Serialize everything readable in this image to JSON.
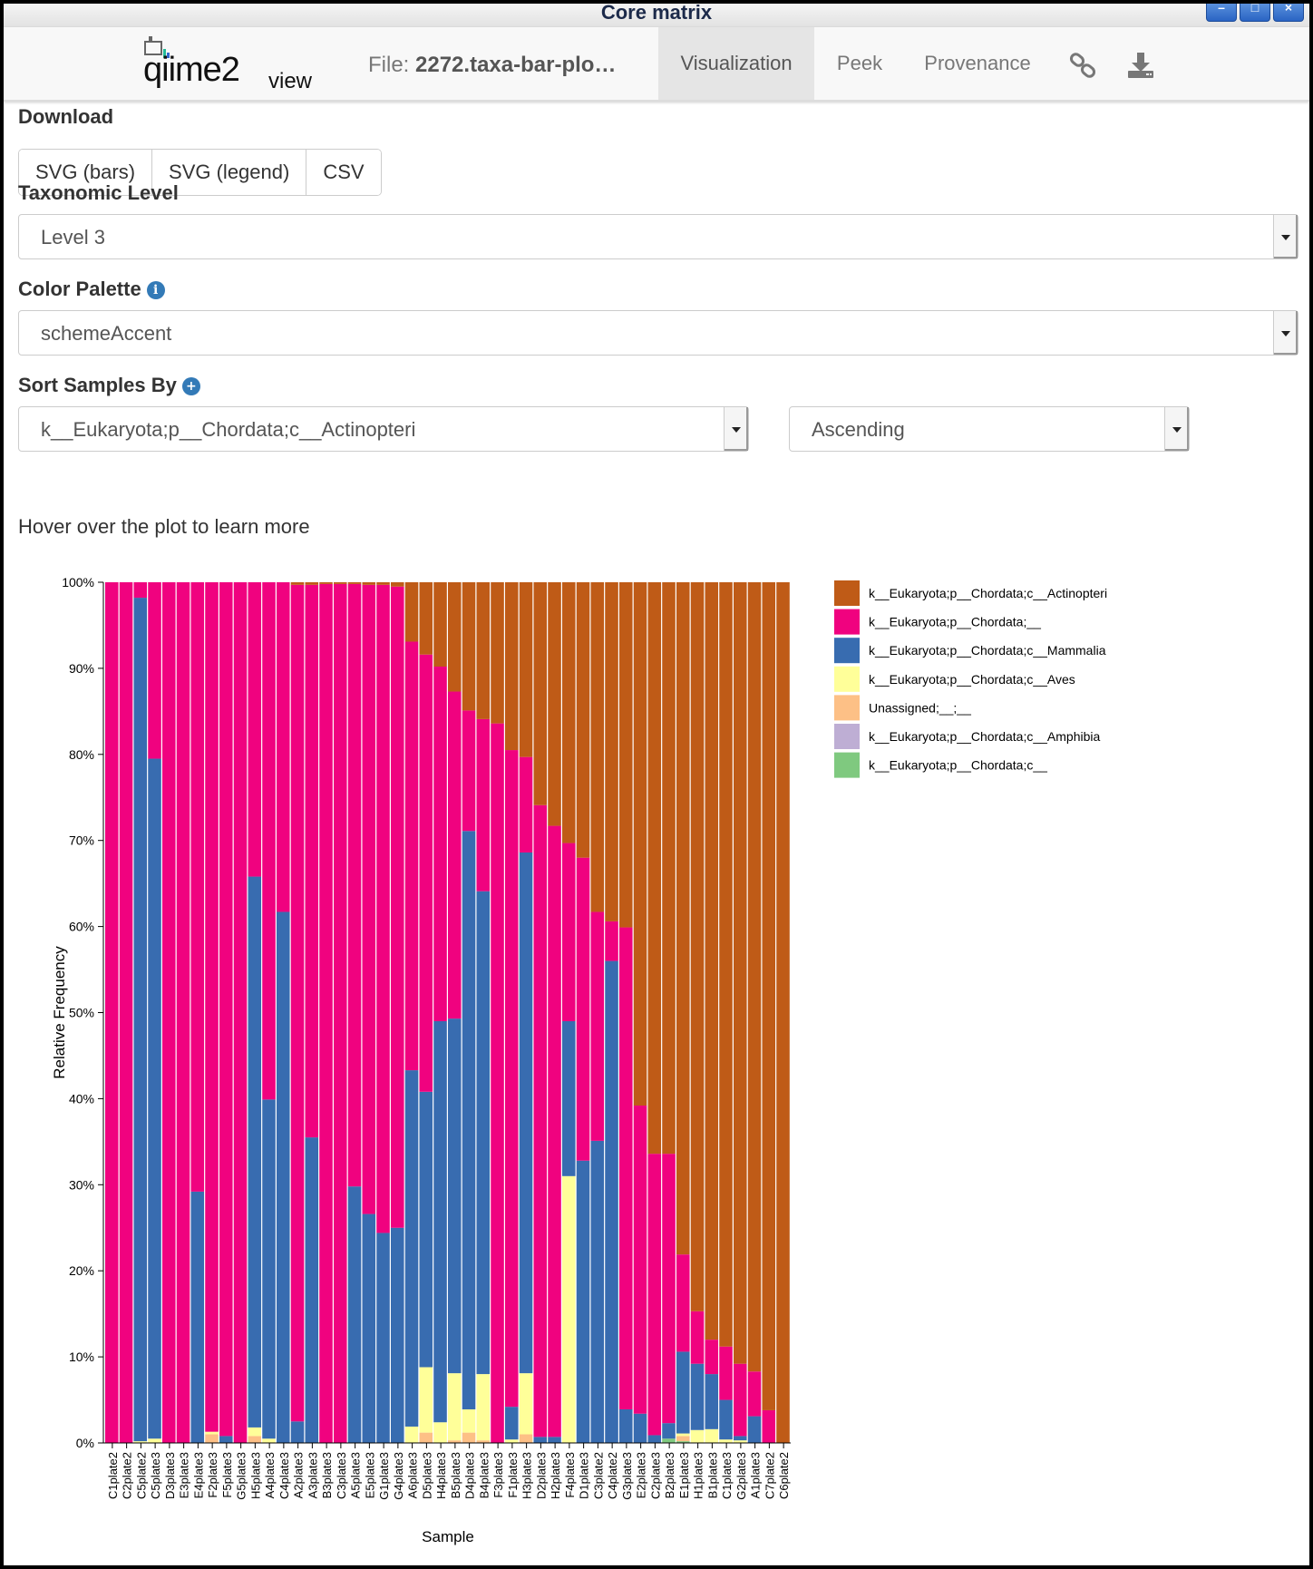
{
  "window": {
    "title": "Core matrix",
    "controls": [
      "–",
      "□",
      "×"
    ]
  },
  "navbar": {
    "logo_text": "qiime2",
    "logo_view": "view",
    "file_prefix": "File: ",
    "file_name": "2272.taxa-bar-plo…",
    "tabs": [
      {
        "label": "Visualization",
        "active": true
      },
      {
        "label": "Peek",
        "active": false
      },
      {
        "label": "Provenance",
        "active": false
      }
    ],
    "icons": [
      "link-icon",
      "download-icon"
    ]
  },
  "controls": {
    "download_label": "Download",
    "download_buttons": [
      "SVG (bars)",
      "SVG (legend)",
      "CSV"
    ],
    "taxonomic_level_label": "Taxonomic Level",
    "taxonomic_level_value": "Level 3",
    "color_palette_label": "Color Palette",
    "color_palette_value": "schemeAccent",
    "sort_label": "Sort Samples By",
    "sort_value": "k__Eukaryota;p__Chordata;c__Actinopteri",
    "sort_order": "Ascending",
    "hover_text": "Hover over the plot to learn more"
  },
  "chart_data": {
    "type": "bar",
    "stacked": true,
    "xlabel": "Sample",
    "ylabel": "Relative Frequency",
    "ylim": [
      0,
      100
    ],
    "yticks": [
      "0%",
      "10%",
      "20%",
      "30%",
      "40%",
      "50%",
      "60%",
      "70%",
      "80%",
      "90%",
      "100%"
    ],
    "categories": [
      "C1plate2",
      "C2plate2",
      "C5plate2",
      "C5plate3",
      "D3plate3",
      "E3plate3",
      "E4plate3",
      "F2plate3",
      "F5plate3",
      "G5plate3",
      "H5plate3",
      "A4plate3",
      "C4plate3",
      "A2plate3",
      "A3plate3",
      "B3plate3",
      "C3plate3",
      "A5plate3",
      "E5plate3",
      "G1plate3",
      "G4plate3",
      "A6plate3",
      "D5plate3",
      "H4plate3",
      "B5plate3",
      "D4plate3",
      "B4plate3",
      "F3plate3",
      "F1plate3",
      "H3plate3",
      "D2plate3",
      "H2plate3",
      "F4plate3",
      "D1plate3",
      "C3plate2",
      "C4plate2",
      "G3plate3",
      "E2plate3",
      "C2plate3",
      "B2plate3",
      "E1plate3",
      "H1plate3",
      "B1plate3",
      "C1plate3",
      "G2plate3",
      "A1plate3",
      "C7plate2",
      "C6plate2"
    ],
    "series": [
      {
        "name": "k__Eukaryota;p__Chordata;c__Amphibia",
        "color": "#beaed4",
        "values": [
          0,
          0,
          0,
          0,
          0,
          0,
          0,
          0,
          0,
          0,
          0,
          0,
          0,
          0,
          0,
          0,
          0,
          0,
          0,
          0,
          0,
          0,
          0,
          0,
          0,
          0,
          0,
          0,
          0,
          0,
          0,
          0,
          0,
          0,
          0,
          0,
          0,
          0,
          0,
          0,
          0,
          0,
          0,
          0,
          0,
          0,
          0,
          0
        ]
      },
      {
        "name": "k__Eukaryota;p__Chordata;c__",
        "color": "#7fc97f",
        "values": [
          0,
          0,
          0,
          0,
          0,
          0,
          0,
          0,
          0,
          0,
          0,
          0,
          0,
          0,
          0,
          0,
          0,
          0,
          0,
          0,
          0,
          0,
          0,
          0,
          0,
          0,
          0,
          0,
          0,
          0,
          0,
          0,
          0,
          0,
          0,
          0,
          0,
          0,
          0,
          0.5,
          0.2,
          0,
          0,
          0,
          0,
          0,
          0,
          0
        ]
      },
      {
        "name": "Unassigned;__;__",
        "color": "#fdc086",
        "values": [
          0,
          0,
          0,
          0,
          0,
          0,
          0,
          1.0,
          0,
          0,
          0.8,
          0,
          0,
          0,
          0,
          0,
          0,
          0,
          0,
          0,
          0,
          0,
          1.2,
          0,
          0.3,
          1.2,
          0.3,
          0,
          0,
          1.0,
          0,
          0,
          0,
          0,
          0,
          0,
          0,
          0,
          0,
          0,
          0.6,
          0,
          0,
          0,
          0,
          0,
          0,
          0
        ]
      },
      {
        "name": "k__Eukaryota;p__Chordata;c__Aves",
        "color": "#ffff99",
        "values": [
          0,
          0,
          0.2,
          0.5,
          0,
          0,
          0,
          0.3,
          0,
          0,
          1.0,
          0.5,
          0,
          0,
          0,
          0,
          0,
          0,
          0,
          0,
          0,
          1.9,
          7.6,
          2.4,
          7.8,
          2.7,
          7.7,
          0,
          0.4,
          7.1,
          0,
          0,
          31.0,
          0,
          0,
          0,
          0,
          0,
          0,
          0,
          0.3,
          1.5,
          1.6,
          0.4,
          0.3,
          0,
          0,
          0
        ]
      },
      {
        "name": "k__Eukaryota;p__Chordata;c__Mammalia",
        "color": "#386cb0",
        "values": [
          0,
          0,
          98.0,
          79.0,
          0,
          0,
          29.2,
          0,
          0.8,
          0,
          64.0,
          39.4,
          61.7,
          2.5,
          35.5,
          0,
          0,
          29.8,
          26.6,
          24.4,
          25.0,
          41.4,
          32.0,
          46.6,
          41.2,
          67.2,
          56.1,
          0,
          3.8,
          60.5,
          0.7,
          0.7,
          18.0,
          32.8,
          35.1,
          56.0,
          3.9,
          3.4,
          0.9,
          1.8,
          9.5,
          7.7,
          6.4,
          4.6,
          0.5,
          3.1,
          0,
          0
        ]
      },
      {
        "name": "k__Eukaryota;p__Chordata;__",
        "color": "#f0027f",
        "values": [
          100,
          100,
          1.8,
          20.5,
          100,
          100,
          70.8,
          98.7,
          99.2,
          100,
          34.2,
          60.1,
          38.3,
          97.2,
          64.2,
          99.8,
          99.8,
          70.0,
          73.1,
          75.3,
          74.5,
          49.8,
          50.8,
          41.2,
          38.0,
          14.0,
          20.0,
          83.6,
          76.3,
          11.1,
          73.4,
          71.0,
          20.7,
          35.2,
          26.6,
          4.6,
          56.0,
          35.8,
          32.7,
          31.3,
          11.3,
          6.1,
          4.0,
          6.2,
          8.4,
          5.2,
          3.8,
          0
        ]
      },
      {
        "name": "k__Eukaryota;p__Chordata;c__Actinopteri",
        "color": "#bf5b17",
        "values": [
          0,
          0,
          0,
          0,
          0,
          0,
          0,
          0,
          0,
          0,
          0,
          0,
          0,
          0.3,
          0.3,
          0.2,
          0.2,
          0.2,
          0.3,
          0.3,
          0.5,
          6.9,
          8.4,
          9.8,
          12.7,
          14.9,
          15.9,
          16.4,
          19.5,
          20.3,
          25.9,
          28.3,
          30.3,
          32.0,
          38.3,
          39.4,
          40.1,
          60.8,
          66.4,
          66.4,
          78.1,
          84.7,
          88.0,
          88.8,
          90.8,
          91.7,
          96.2,
          100
        ]
      }
    ],
    "legend_order": [
      "k__Eukaryota;p__Chordata;c__Actinopteri",
      "k__Eukaryota;p__Chordata;__",
      "k__Eukaryota;p__Chordata;c__Mammalia",
      "k__Eukaryota;p__Chordata;c__Aves",
      "Unassigned;__;__",
      "k__Eukaryota;p__Chordata;c__Amphibia",
      "k__Eukaryota;p__Chordata;c__"
    ],
    "legend_placement": "right"
  }
}
